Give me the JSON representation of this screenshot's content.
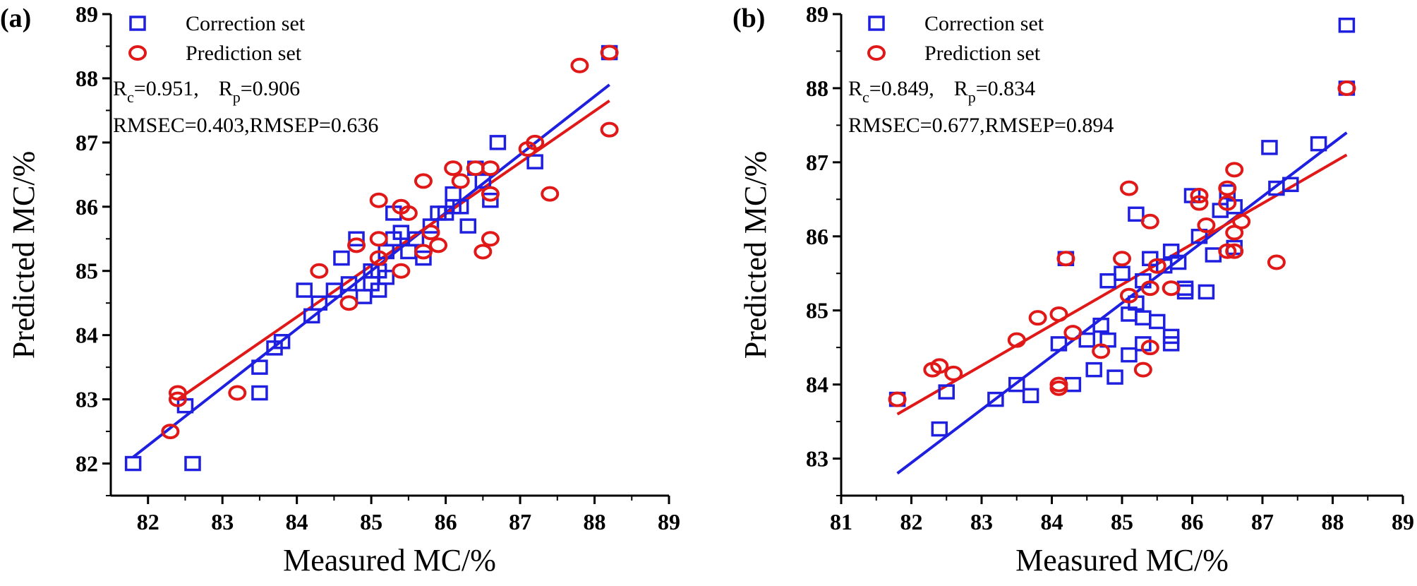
{
  "chart_data": [
    {
      "type": "scatter",
      "panel_label": "(a)",
      "xlabel": "Measured MC/%",
      "ylabel": "Predicted MC/%",
      "xlim": [
        81.5,
        89
      ],
      "ylim": [
        81.5,
        89
      ],
      "xticks": [
        "82",
        "83",
        "84",
        "85",
        "86",
        "87",
        "88",
        "89"
      ],
      "yticks": [
        "82",
        "83",
        "84",
        "85",
        "86",
        "87",
        "88",
        "89"
      ],
      "grid": false,
      "legend_position": "top-left",
      "stats": {
        "r_c_sym": "R",
        "r_c_sub": "c",
        "r_c_val": "=0.951,",
        "r_p_sym": "R",
        "r_p_sub": "p",
        "r_p_val": "=0.906",
        "rmse_line": "RMSEC=0.403,RMSEP=0.636"
      },
      "series": [
        {
          "name": "Correction set",
          "marker": "square",
          "color": "#1f1fe0",
          "points": [
            [
              81.8,
              82.0
            ],
            [
              82.5,
              82.9
            ],
            [
              82.6,
              82.0
            ],
            [
              83.5,
              83.1
            ],
            [
              83.5,
              83.5
            ],
            [
              83.7,
              83.8
            ],
            [
              83.8,
              83.9
            ],
            [
              84.1,
              84.7
            ],
            [
              84.2,
              84.3
            ],
            [
              84.3,
              84.5
            ],
            [
              84.5,
              84.7
            ],
            [
              84.6,
              85.2
            ],
            [
              84.7,
              84.8
            ],
            [
              84.8,
              85.5
            ],
            [
              84.9,
              84.6
            ],
            [
              85.0,
              84.8
            ],
            [
              85.0,
              85.0
            ],
            [
              85.1,
              84.7
            ],
            [
              85.1,
              85.0
            ],
            [
              85.2,
              84.9
            ],
            [
              85.2,
              85.3
            ],
            [
              85.3,
              85.5
            ],
            [
              85.3,
              85.9
            ],
            [
              85.4,
              85.6
            ],
            [
              85.5,
              85.3
            ],
            [
              85.6,
              85.5
            ],
            [
              85.7,
              85.2
            ],
            [
              85.8,
              85.7
            ],
            [
              85.9,
              85.9
            ],
            [
              86.0,
              85.9
            ],
            [
              86.1,
              86.0
            ],
            [
              86.1,
              86.2
            ],
            [
              86.2,
              86.0
            ],
            [
              86.3,
              85.7
            ],
            [
              86.4,
              86.6
            ],
            [
              86.5,
              86.4
            ],
            [
              86.6,
              86.1
            ],
            [
              86.7,
              87.0
            ],
            [
              87.2,
              86.7
            ],
            [
              88.2,
              88.4
            ]
          ]
        },
        {
          "name": "Prediction set",
          "marker": "circle",
          "color": "#e01818",
          "points": [
            [
              82.3,
              82.5
            ],
            [
              82.4,
              83.1
            ],
            [
              82.4,
              83.0
            ],
            [
              83.2,
              83.1
            ],
            [
              84.3,
              85.0
            ],
            [
              84.7,
              84.5
            ],
            [
              84.8,
              85.4
            ],
            [
              85.1,
              85.2
            ],
            [
              85.1,
              85.5
            ],
            [
              85.1,
              86.1
            ],
            [
              85.4,
              85.0
            ],
            [
              85.4,
              86.0
            ],
            [
              85.5,
              85.9
            ],
            [
              85.7,
              85.3
            ],
            [
              85.7,
              86.4
            ],
            [
              85.8,
              85.6
            ],
            [
              85.9,
              85.4
            ],
            [
              86.1,
              86.6
            ],
            [
              86.2,
              86.4
            ],
            [
              86.4,
              86.6
            ],
            [
              86.5,
              85.3
            ],
            [
              86.6,
              85.5
            ],
            [
              86.6,
              86.2
            ],
            [
              86.6,
              86.6
            ],
            [
              87.1,
              86.9
            ],
            [
              87.2,
              87.0
            ],
            [
              87.4,
              86.2
            ],
            [
              87.8,
              88.2
            ],
            [
              88.2,
              88.4
            ],
            [
              88.2,
              87.2
            ]
          ]
        }
      ],
      "fit_lines": [
        {
          "name": "Correction fit",
          "color": "#1f1fe0",
          "x": [
            81.8,
            88.2
          ],
          "y": [
            82.1,
            87.9
          ]
        },
        {
          "name": "Prediction fit",
          "color": "#e01818",
          "x": [
            82.4,
            88.2
          ],
          "y": [
            83.0,
            87.65
          ]
        }
      ]
    },
    {
      "type": "scatter",
      "panel_label": "(b)",
      "xlabel": "Measured MC/%",
      "ylabel": "Predicted MC/%",
      "xlim": [
        81,
        89
      ],
      "ylim": [
        82.5,
        89
      ],
      "xticks": [
        "81",
        "82",
        "83",
        "84",
        "85",
        "86",
        "87",
        "88",
        "89"
      ],
      "yticks": [
        "83",
        "84",
        "85",
        "86",
        "87",
        "88",
        "89"
      ],
      "grid": false,
      "legend_position": "top-left",
      "stats": {
        "r_c_sym": "R",
        "r_c_sub": "c",
        "r_c_val": "=0.849,",
        "r_p_sym": "R",
        "r_p_sub": "p",
        "r_p_val": "=0.834",
        "rmse_line": "RMSEC=0.677,RMSEP=0.894"
      },
      "series": [
        {
          "name": "Correction set",
          "marker": "square",
          "color": "#1f1fe0",
          "points": [
            [
              81.8,
              83.8
            ],
            [
              82.4,
              83.4
            ],
            [
              82.5,
              83.9
            ],
            [
              83.2,
              83.8
            ],
            [
              83.5,
              84.0
            ],
            [
              83.7,
              83.85
            ],
            [
              84.1,
              84.55
            ],
            [
              84.2,
              85.7
            ],
            [
              84.3,
              84.0
            ],
            [
              84.5,
              84.6
            ],
            [
              84.6,
              84.2
            ],
            [
              84.7,
              84.8
            ],
            [
              84.8,
              84.6
            ],
            [
              84.8,
              85.4
            ],
            [
              84.9,
              84.1
            ],
            [
              85.0,
              85.5
            ],
            [
              85.1,
              84.4
            ],
            [
              85.1,
              84.95
            ],
            [
              85.2,
              86.3
            ],
            [
              85.2,
              85.1
            ],
            [
              85.3,
              84.55
            ],
            [
              85.3,
              84.9
            ],
            [
              85.3,
              85.4
            ],
            [
              85.4,
              85.7
            ],
            [
              85.5,
              84.85
            ],
            [
              85.6,
              85.6
            ],
            [
              85.7,
              84.55
            ],
            [
              85.7,
              84.65
            ],
            [
              85.7,
              85.8
            ],
            [
              85.8,
              85.65
            ],
            [
              85.9,
              85.3
            ],
            [
              85.9,
              85.25
            ],
            [
              86.0,
              86.55
            ],
            [
              86.1,
              86.0
            ],
            [
              86.2,
              85.25
            ],
            [
              86.3,
              85.75
            ],
            [
              86.4,
              86.35
            ],
            [
              86.5,
              86.6
            ],
            [
              86.6,
              86.4
            ],
            [
              86.6,
              85.85
            ],
            [
              87.1,
              87.2
            ],
            [
              87.2,
              86.65
            ],
            [
              87.4,
              86.7
            ],
            [
              87.8,
              87.25
            ],
            [
              88.2,
              88.85
            ],
            [
              88.2,
              88.0
            ]
          ]
        },
        {
          "name": "Prediction set",
          "marker": "circle",
          "color": "#e01818",
          "points": [
            [
              81.8,
              83.8
            ],
            [
              82.3,
              84.2
            ],
            [
              82.4,
              84.25
            ],
            [
              82.6,
              84.15
            ],
            [
              83.5,
              84.6
            ],
            [
              83.8,
              84.9
            ],
            [
              84.1,
              84.95
            ],
            [
              84.1,
              84.0
            ],
            [
              84.1,
              83.95
            ],
            [
              84.2,
              85.7
            ],
            [
              84.3,
              84.7
            ],
            [
              84.7,
              84.45
            ],
            [
              85.0,
              85.7
            ],
            [
              85.1,
              85.2
            ],
            [
              85.1,
              86.65
            ],
            [
              85.3,
              84.2
            ],
            [
              85.4,
              84.5
            ],
            [
              85.4,
              85.3
            ],
            [
              85.4,
              86.2
            ],
            [
              85.5,
              85.6
            ],
            [
              85.7,
              85.3
            ],
            [
              86.1,
              86.55
            ],
            [
              86.1,
              86.45
            ],
            [
              86.2,
              86.15
            ],
            [
              86.5,
              86.65
            ],
            [
              86.5,
              86.45
            ],
            [
              86.5,
              85.8
            ],
            [
              86.6,
              86.05
            ],
            [
              86.6,
              85.8
            ],
            [
              86.6,
              86.9
            ],
            [
              86.7,
              86.2
            ],
            [
              87.2,
              85.65
            ],
            [
              88.2,
              88.0
            ]
          ]
        }
      ],
      "fit_lines": [
        {
          "name": "Correction fit",
          "color": "#1f1fe0",
          "x": [
            81.8,
            88.2
          ],
          "y": [
            82.8,
            87.4
          ]
        },
        {
          "name": "Prediction fit",
          "color": "#e01818",
          "x": [
            81.8,
            88.2
          ],
          "y": [
            83.6,
            87.1
          ]
        }
      ]
    }
  ]
}
